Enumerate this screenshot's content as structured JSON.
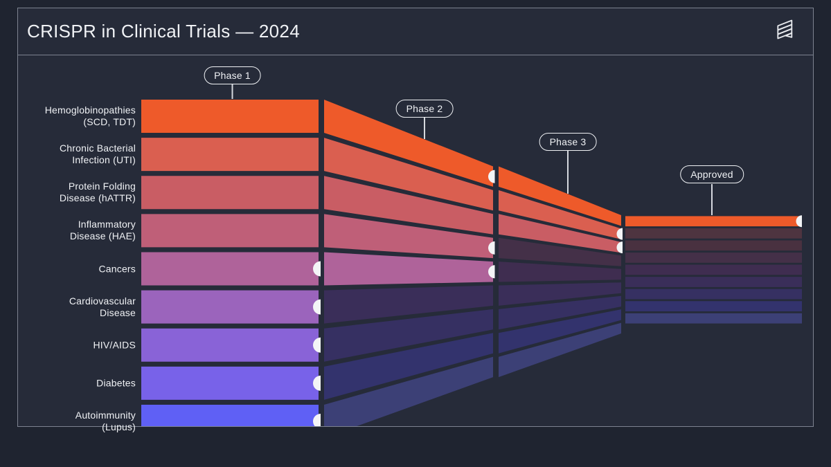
{
  "header": {
    "title": "CRISPR in Clinical Trials — 2024",
    "logo_icon": "ribbon-helix-logo"
  },
  "style": {
    "background": "#262b39",
    "canvas_background": "#1f2430",
    "border_color": "#7d8390",
    "text_color": "#f0f2f5",
    "marker_color": "#f3f4f6",
    "pointer_line_color": "#d6d9df"
  },
  "chart_data": {
    "type": "funnel",
    "title": "CRISPR in Clinical Trials — 2024",
    "phases": [
      "Phase 1",
      "Phase 2",
      "Phase 3",
      "Approved"
    ],
    "legend_position": "top-pills-with-pointers",
    "lanes": [
      {
        "label_lines": [
          "Hemoglobinopathies",
          "(SCD, TDT)"
        ],
        "phase_reached": "Approved",
        "terminal_markers": [
          "Phase 2",
          "Approved"
        ],
        "color": "#ee5a2a",
        "muted_color": "#5a3238"
      },
      {
        "label_lines": [
          "Chronic Bacterial",
          "Infection (UTI)"
        ],
        "phase_reached": "Phase 3",
        "terminal_markers": [
          "Phase 3"
        ],
        "color": "#da5f50",
        "muted_color": "#4e3440"
      },
      {
        "label_lines": [
          "Protein Folding",
          "Disease (hATTR)"
        ],
        "phase_reached": "Phase 3",
        "terminal_markers": [
          "Phase 3"
        ],
        "color": "#c95d64",
        "muted_color": "#493140"
      },
      {
        "label_lines": [
          "Inflammatory",
          "Disease (HAE)"
        ],
        "phase_reached": "Phase 2",
        "terminal_markers": [
          "Phase 2"
        ],
        "color": "#bf5f78",
        "muted_color": "#443048"
      },
      {
        "label_lines": [
          "Cancers"
        ],
        "phase_reached": "Phase 2",
        "terminal_markers": [
          "Phase 1",
          "Phase 2"
        ],
        "color": "#af639a",
        "muted_color": "#3f2d50"
      },
      {
        "label_lines": [
          "Cardiovascular",
          "Disease"
        ],
        "phase_reached": "Phase 1",
        "terminal_markers": [
          "Phase 1"
        ],
        "color": "#9b64bc",
        "muted_color": "#3a2e59"
      },
      {
        "label_lines": [
          "HIV/AIDS"
        ],
        "phase_reached": "Phase 1",
        "terminal_markers": [
          "Phase 1"
        ],
        "color": "#8963d7",
        "muted_color": "#363062"
      },
      {
        "label_lines": [
          "Diabetes"
        ],
        "phase_reached": "Phase 1",
        "terminal_markers": [
          "Phase 1"
        ],
        "color": "#7862e9",
        "muted_color": "#33336d"
      },
      {
        "label_lines": [
          "Autoimmunity",
          "(Lupus)"
        ],
        "phase_reached": "Phase 1",
        "terminal_markers": [
          "Phase 1"
        ],
        "color": "#5f60f5",
        "muted_color": "#3c4076"
      }
    ]
  }
}
